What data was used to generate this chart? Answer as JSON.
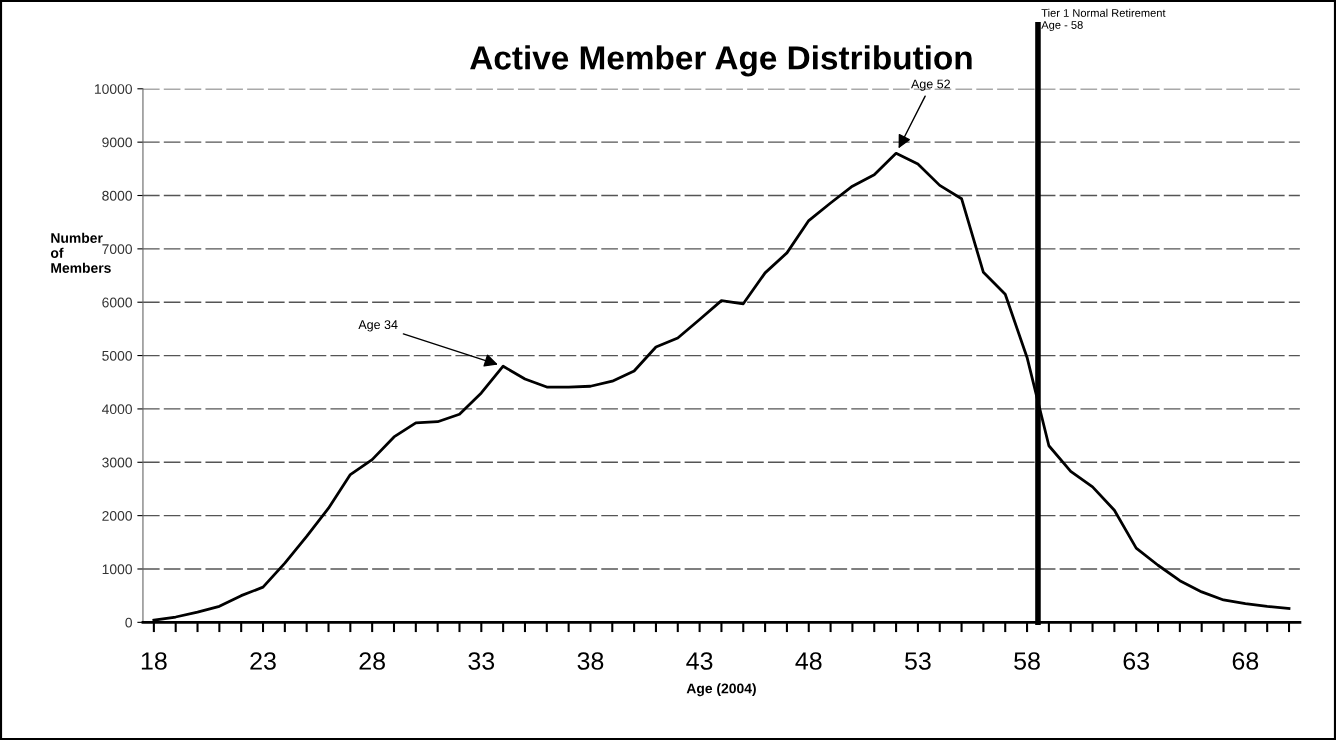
{
  "chart_data": {
    "type": "line",
    "title": "Active Member Age Distribution",
    "xlabel": "Age (2004)",
    "ylabel": "Number\nof\nMembers",
    "x": [
      18,
      19,
      20,
      21,
      22,
      23,
      24,
      25,
      26,
      27,
      28,
      29,
      30,
      31,
      32,
      33,
      34,
      35,
      36,
      37,
      38,
      39,
      40,
      41,
      42,
      43,
      44,
      45,
      46,
      47,
      48,
      49,
      50,
      51,
      52,
      53,
      54,
      55,
      56,
      57,
      58,
      59,
      60,
      61,
      62,
      63,
      64,
      65,
      66,
      67,
      68,
      69,
      70
    ],
    "series": [
      {
        "color": "#000000",
        "values": [
          40,
          100,
          190,
          300,
          500,
          660,
          1110,
          1610,
          2140,
          2770,
          3050,
          3475,
          3740,
          3760,
          3900,
          4300,
          4800,
          4560,
          4410,
          4410,
          4425,
          4520,
          4710,
          5160,
          5330,
          5675,
          6030,
          5970,
          6550,
          6925,
          7530,
          7860,
          8175,
          8390,
          8790,
          8590,
          8190,
          7940,
          6560,
          6150,
          4965,
          3310,
          2830,
          2540,
          2100,
          1390,
          1070,
          780,
          570,
          420,
          350,
          300,
          260
        ]
      }
    ],
    "xlim": [
      17.5,
      70.5
    ],
    "xticks": [
      18,
      {
        "value": 19,
        "label": null
      },
      {
        "value": 20,
        "label": null
      },
      {
        "value": 21,
        "label": null
      },
      {
        "value": 22,
        "label": null
      },
      23,
      {
        "value": 24,
        "label": null
      },
      {
        "value": 25,
        "label": null
      },
      {
        "value": 26,
        "label": null
      },
      {
        "value": 27,
        "label": null
      },
      28,
      {
        "value": 29,
        "label": null
      },
      {
        "value": 30,
        "label": null
      },
      {
        "value": 31,
        "label": null
      },
      {
        "value": 32,
        "label": null
      },
      33,
      {
        "value": 34,
        "label": null
      },
      {
        "value": 35,
        "label": null
      },
      {
        "value": 36,
        "label": null
      },
      {
        "value": 37,
        "label": null
      },
      38,
      {
        "value": 39,
        "label": null
      },
      {
        "value": 40,
        "label": null
      },
      {
        "value": 41,
        "label": null
      },
      {
        "value": 42,
        "label": null
      },
      43,
      {
        "value": 44,
        "label": null
      },
      {
        "value": 45,
        "label": null
      },
      {
        "value": 46,
        "label": null
      },
      {
        "value": 47,
        "label": null
      },
      48,
      {
        "value": 49,
        "label": null
      },
      {
        "value": 50,
        "label": null
      },
      {
        "value": 51,
        "label": null
      },
      {
        "value": 52,
        "label": null
      },
      53,
      {
        "value": 54,
        "label": null
      },
      {
        "value": 55,
        "label": null
      },
      {
        "value": 56,
        "label": null
      },
      {
        "value": 57,
        "label": null
      },
      58,
      {
        "value": 59,
        "label": null
      },
      {
        "value": 60,
        "label": null
      },
      {
        "value": 61,
        "label": null
      },
      {
        "value": 62,
        "label": null
      },
      63,
      {
        "value": 64,
        "label": null
      },
      {
        "value": 65,
        "label": null
      },
      {
        "value": 66,
        "label": null
      },
      {
        "value": 67,
        "label": null
      },
      68,
      {
        "value": 69,
        "label": null
      },
      {
        "value": 70,
        "label": null
      }
    ],
    "ylim": [
      0,
      10000
    ],
    "yticks": [
      0,
      1000,
      2000,
      3000,
      4000,
      5000,
      6000,
      7000,
      8000,
      9000,
      10000
    ],
    "grid": "y",
    "marker": "none",
    "line_style": "solid",
    "ref_lines": [
      {
        "axis": "x",
        "value": 58.5,
        "label": "Tier 1 Normal Retirement\nAge - 58",
        "color": "#000000"
      }
    ],
    "annotations": [
      {
        "text": "Age 34",
        "x": 34,
        "y": 4800
      },
      {
        "text": "Age 52",
        "x": 52,
        "y": 8790
      }
    ]
  }
}
